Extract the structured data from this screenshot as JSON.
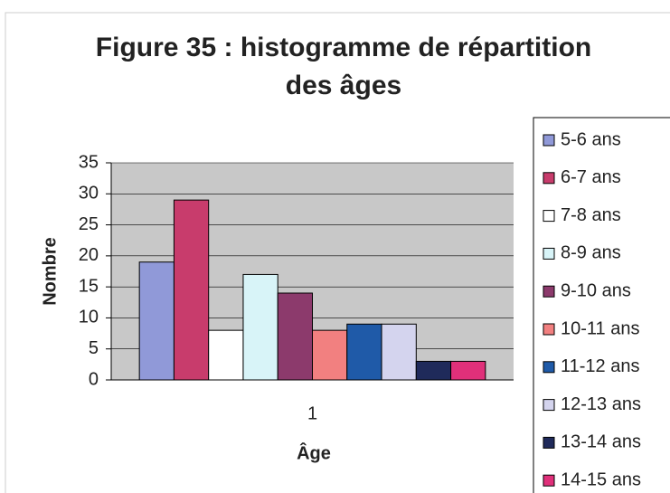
{
  "chart_data": {
    "type": "bar",
    "title": "Figure 35 : histogramme de répartition des âges",
    "categories": [
      "1"
    ],
    "series": [
      {
        "name": "5-6 ans",
        "color": "#9099d8",
        "values": [
          19
        ]
      },
      {
        "name": "6-7 ans",
        "color": "#c83c6c",
        "values": [
          29
        ]
      },
      {
        "name": "7-8 ans",
        "color": "#ffffff",
        "values": [
          8
        ]
      },
      {
        "name": "8-9 ans",
        "color": "#d8f4f8",
        "values": [
          17
        ]
      },
      {
        "name": "9-10 ans",
        "color": "#8c3a6c",
        "values": [
          14
        ]
      },
      {
        "name": "10-11 ans",
        "color": "#f28080",
        "values": [
          8
        ]
      },
      {
        "name": "11-12 ans",
        "color": "#1f5aa8",
        "values": [
          9
        ]
      },
      {
        "name": "12-13 ans",
        "color": "#d4d4ee",
        "values": [
          9
        ]
      },
      {
        "name": "13-14 ans",
        "color": "#1f2a5a",
        "values": [
          3
        ]
      },
      {
        "name": "14-15 ans",
        "color": "#e0307a",
        "values": [
          3
        ]
      }
    ],
    "xlabel": "Âge",
    "ylabel": "Nombre",
    "ylim": [
      0,
      35
    ],
    "yticks": [
      0,
      5,
      10,
      15,
      20,
      25,
      30,
      35
    ],
    "grid": true
  }
}
